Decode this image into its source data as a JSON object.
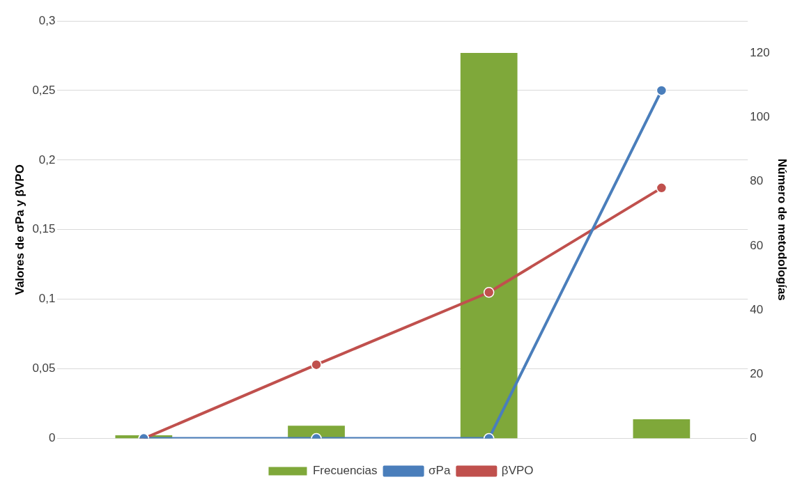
{
  "chart_data": {
    "type": "bar",
    "ylabel": "Valores de σPa y βVPO",
    "y2label": "Número de metodologías",
    "categories": [
      null,
      null,
      null,
      null
    ],
    "series": [
      {
        "name": "Frecuencias",
        "axis": "y2",
        "color": "#7fa83a",
        "values": [
          1,
          4,
          120,
          6
        ]
      },
      {
        "name": "σPa",
        "type": "line",
        "color": "#4a7ebb",
        "values": [
          0,
          0,
          0,
          0.25
        ]
      },
      {
        "name": "βVPO",
        "type": "line",
        "color": "#c0504d",
        "values": [
          0,
          0.053,
          0.105,
          0.18
        ]
      }
    ],
    "ylim": [
      0,
      0.3
    ],
    "yticks": [
      {
        "value": 0,
        "label": "0"
      },
      {
        "value": 0.05,
        "label": "0,05"
      },
      {
        "value": 0.1,
        "label": "0,1"
      },
      {
        "value": 0.15,
        "label": "0,15"
      },
      {
        "value": 0.2,
        "label": "0,2"
      },
      {
        "value": 0.25,
        "label": "0,25"
      },
      {
        "value": 0.3,
        "label": "0,3"
      }
    ],
    "y2lim": [
      0,
      130
    ],
    "y2ticks": [
      0,
      20,
      40,
      60,
      80,
      100,
      120
    ],
    "grid": "y",
    "legend": "bottom",
    "marker": "circle",
    "line_style": "solid"
  }
}
